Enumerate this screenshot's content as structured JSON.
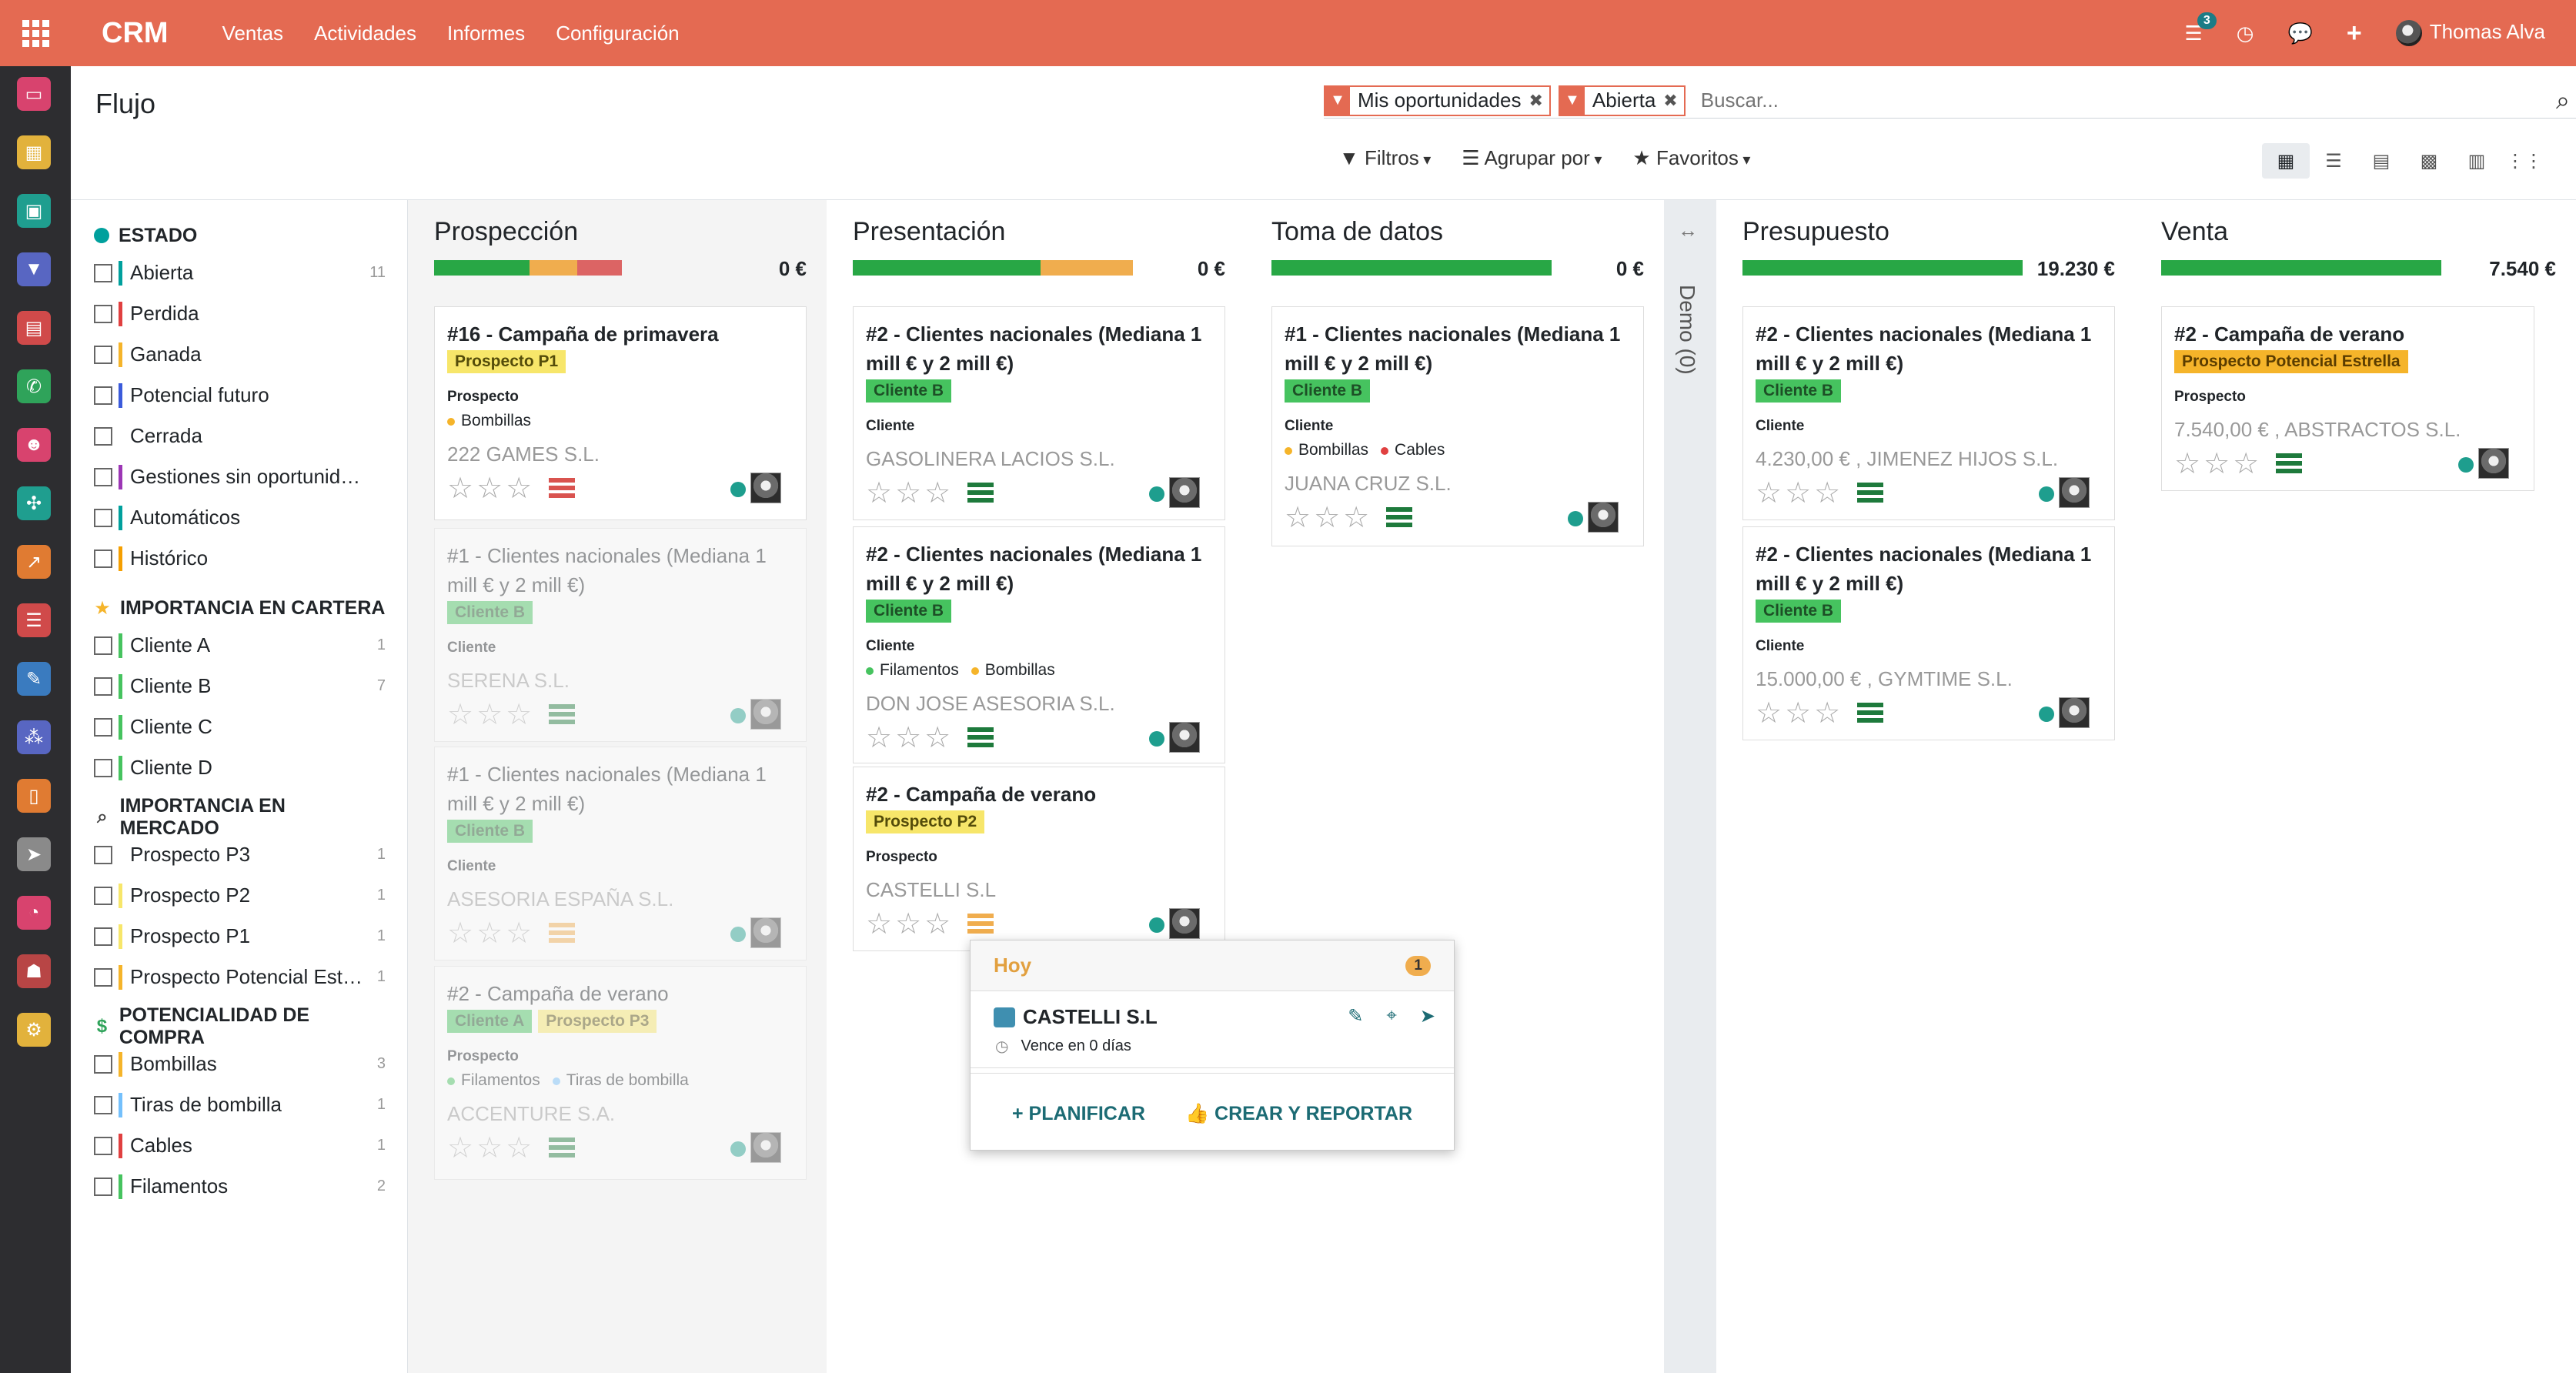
{
  "topbar": {
    "brand": "CRM",
    "menu": [
      "Ventas",
      "Actividades",
      "Informes",
      "Configuración"
    ],
    "messages_badge": "3",
    "user": "Thomas Alva"
  },
  "control": {
    "title": "Flujo",
    "facets": [
      "Mis oportunidades",
      "Abierta"
    ],
    "search_placeholder": "Buscar...",
    "filters_label": "Filtros",
    "groupby_label": "Agrupar por",
    "favorites_label": "Favoritos"
  },
  "searchpanel": {
    "sections": [
      {
        "title": "ESTADO",
        "items": [
          {
            "label": "Abierta",
            "count": "11",
            "color": "#00a09d"
          },
          {
            "label": "Perdida",
            "count": "",
            "color": "#e04040"
          },
          {
            "label": "Ganada",
            "count": "",
            "color": "#f5b42a"
          },
          {
            "label": "Potencial futuro",
            "count": "",
            "color": "#3b5bdb"
          },
          {
            "label": "Cerrada",
            "count": "",
            "color": "#ffffff"
          },
          {
            "label": "Gestiones sin oportunid…",
            "count": "",
            "color": "#9c36b5"
          },
          {
            "label": "Automáticos",
            "count": "",
            "color": "#00a09d"
          },
          {
            "label": "Histórico",
            "count": "",
            "color": "#f59f00"
          }
        ]
      },
      {
        "title": "IMPORTANCIA EN CARTERA",
        "items": [
          {
            "label": "Cliente A",
            "count": "1",
            "color": "#46c35f"
          },
          {
            "label": "Cliente B",
            "count": "7",
            "color": "#46c35f"
          },
          {
            "label": "Cliente C",
            "count": "",
            "color": "#46c35f"
          },
          {
            "label": "Cliente D",
            "count": "",
            "color": "#46c35f"
          }
        ]
      },
      {
        "title": "IMPORTANCIA EN MERCADO",
        "items": [
          {
            "label": "Prospecto P3",
            "count": "1",
            "color": "#ffffff"
          },
          {
            "label": "Prospecto P2",
            "count": "1",
            "color": "#f7e66a"
          },
          {
            "label": "Prospecto P1",
            "count": "1",
            "color": "#f7e66a"
          },
          {
            "label": "Prospecto Potencial Est…",
            "count": "1",
            "color": "#f5b42a"
          }
        ]
      },
      {
        "title": "POTENCIALIDAD DE COMPRA",
        "items": [
          {
            "label": "Bombillas",
            "count": "3",
            "color": "#f5b42a"
          },
          {
            "label": "Tiras de bombilla",
            "count": "1",
            "color": "#74c0fc"
          },
          {
            "label": "Cables",
            "count": "1",
            "color": "#e04040"
          },
          {
            "label": "Filamentos",
            "count": "2",
            "color": "#46c35f"
          }
        ]
      }
    ]
  },
  "columns": [
    {
      "title": "Prospección",
      "total": "0 €",
      "progress": [
        0.34,
        0.17,
        0.16
      ],
      "progress_colors": [
        "#28a745",
        "#f0ad4e",
        "#dc6464"
      ],
      "cards": [
        {
          "title": "#16 - Campaña de primavera",
          "tags": [
            {
              "label": "Prospecto P1",
              "color": "yellow"
            }
          ],
          "type": "Prospecto",
          "props": [
            {
              "label": "Bombillas",
              "color": "#f5b42a"
            }
          ],
          "company": "222 GAMES S.L.",
          "activity": "red",
          "faded": false
        },
        {
          "title": "#1 - Clientes nacionales (Mediana 1 mill € y 2 mill €)",
          "tags": [
            {
              "label": "Cliente B",
              "color": "green"
            }
          ],
          "type": "Cliente",
          "props": [],
          "company": "SERENA S.L.",
          "activity": "green",
          "faded": true
        },
        {
          "title": "#1 - Clientes nacionales (Mediana 1 mill € y 2 mill €)",
          "tags": [
            {
              "label": "Cliente B",
              "color": "green"
            }
          ],
          "type": "Cliente",
          "props": [],
          "company": "ASESORIA ESPAÑA S.L.",
          "activity": "orange",
          "faded": true
        },
        {
          "title": "#2 - Campaña de verano",
          "tags": [
            {
              "label": "Cliente A",
              "color": "green"
            },
            {
              "label": "Prospecto P3",
              "color": "yellow"
            }
          ],
          "type": "Prospecto",
          "props": [
            {
              "label": "Filamentos",
              "color": "#46c35f"
            },
            {
              "label": "Tiras de bombilla",
              "color": "#74c0fc"
            }
          ],
          "company": "ACCENTURE S.A.",
          "activity": "green",
          "faded": true
        }
      ]
    },
    {
      "title": "Presentación",
      "total": "0 €",
      "progress": [
        0.67,
        0.33
      ],
      "progress_colors": [
        "#28a745",
        "#f0ad4e"
      ],
      "cards": [
        {
          "title": "#2 - Clientes nacionales (Mediana 1 mill € y 2 mill €)",
          "tags": [
            {
              "label": "Cliente B",
              "color": "green"
            }
          ],
          "type": "Cliente",
          "props": [],
          "company": "GASOLINERA LACIOS S.L.",
          "activity": "green",
          "faded": false
        },
        {
          "title": "#2 - Clientes nacionales (Mediana 1 mill € y 2 mill €)",
          "tags": [
            {
              "label": "Cliente B",
              "color": "green"
            }
          ],
          "type": "Cliente",
          "props": [
            {
              "label": "Filamentos",
              "color": "#46c35f"
            },
            {
              "label": "Bombillas",
              "color": "#f5b42a"
            }
          ],
          "company": "DON JOSE ASESORIA S.L.",
          "activity": "green",
          "faded": false
        },
        {
          "title": "#2 - Campaña de verano",
          "tags": [
            {
              "label": "Prospecto P2",
              "color": "yellow"
            }
          ],
          "type": "Prospecto",
          "props": [],
          "company": "CASTELLI S.L",
          "activity": "orange",
          "faded": false
        }
      ]
    },
    {
      "title": "Toma de datos",
      "total": "0 €",
      "progress": [
        1.0
      ],
      "progress_colors": [
        "#28a745"
      ],
      "cards": [
        {
          "title": "#1 - Clientes nacionales (Mediana 1 mill € y 2 mill €)",
          "tags": [
            {
              "label": "Cliente B",
              "color": "green"
            }
          ],
          "type": "Cliente",
          "props": [
            {
              "label": "Bombillas",
              "color": "#f5b42a"
            },
            {
              "label": "Cables",
              "color": "#e04040"
            }
          ],
          "company": "JUANA CRUZ S.L.",
          "activity": "green",
          "faded": false
        }
      ]
    },
    {
      "title": "Presupuesto",
      "total": "19.230 €",
      "progress": [
        1.0
      ],
      "progress_colors": [
        "#28a745"
      ],
      "cards": [
        {
          "title": "#2 - Clientes nacionales (Mediana 1 mill € y 2 mill €)",
          "tags": [
            {
              "label": "Cliente B",
              "color": "green"
            }
          ],
          "type": "Cliente",
          "props": [],
          "company": "4.230,00 € , JIMENEZ HIJOS S.L.",
          "activity": "green",
          "faded": false
        },
        {
          "title": "#2 - Clientes nacionales (Mediana 1 mill € y 2 mill €)",
          "tags": [
            {
              "label": "Cliente B",
              "color": "green"
            }
          ],
          "type": "Cliente",
          "props": [],
          "company": "15.000,00 € , GYMTIME S.L.",
          "activity": "green",
          "faded": false
        }
      ]
    },
    {
      "title": "Venta",
      "total": "7.540 €",
      "progress": [
        1.0
      ],
      "progress_colors": [
        "#28a745"
      ],
      "cards": [
        {
          "title": "#2 - Campaña de verano",
          "tags": [
            {
              "label": "Prospecto Potencial Estrella",
              "color": "orange"
            }
          ],
          "type": "Prospecto",
          "props": [],
          "company": "7.540,00 € , ABSTRACTOS S.L.",
          "activity": "green",
          "faded": false
        }
      ]
    }
  ],
  "folded_column": {
    "label": "Demo (0)"
  },
  "popover": {
    "heading": "Hoy",
    "count": "1",
    "name": "CASTELLI S.L",
    "due": "Vence en 0 días",
    "plan": "PLANIFICAR",
    "create": "CREAR Y REPORTAR"
  }
}
